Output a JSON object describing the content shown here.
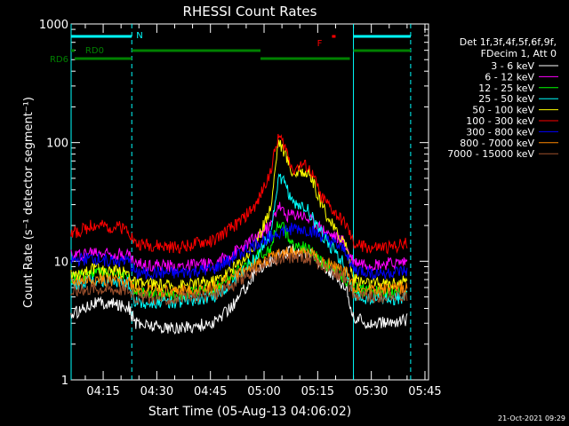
{
  "chart_data": {
    "type": "line",
    "title": "RHESSI Count Rates",
    "xlabel": "Start Time (05-Aug-13 04:06:02)",
    "ylabel": "Count Rate (s⁻¹ detector segment⁻¹)",
    "y_scale": "log",
    "ylim": [
      1,
      1000
    ],
    "xlim": [
      "04:06:02",
      "05:46"
    ],
    "x_ticks": [
      "04:15",
      "04:30",
      "04:45",
      "05:00",
      "05:15",
      "05:30",
      "05:45"
    ],
    "y_ticks": [
      "1",
      "10",
      "100",
      "1000"
    ],
    "header": [
      "Det 1f,3f,4f,5f,6f,9f,",
      "FDecim 1, Att 0"
    ],
    "series": [
      {
        "name": "3 - 6 keV",
        "color": "#ffffff",
        "points": [
          [
            "04:06",
            3.5
          ],
          [
            "04:12",
            4.5
          ],
          [
            "04:22",
            4.2
          ],
          [
            "04:24",
            3.0
          ],
          [
            "04:35",
            2.7
          ],
          [
            "04:46",
            3.0
          ],
          [
            "04:52",
            4.5
          ],
          [
            "04:58",
            8.5
          ],
          [
            "05:03",
            10.5
          ],
          [
            "05:08",
            12.5
          ],
          [
            "05:13",
            11.5
          ],
          [
            "05:18",
            8.5
          ],
          [
            "05:23",
            6.0
          ],
          [
            "05:25",
            3.3
          ],
          [
            "05:30",
            3.0
          ],
          [
            "05:35",
            3.0
          ],
          [
            "05:40",
            3.2
          ]
        ]
      },
      {
        "name": "6 - 12 keV",
        "color": "#ff00ff",
        "points": [
          [
            "04:06",
            11
          ],
          [
            "04:12",
            12
          ],
          [
            "04:22",
            11.5
          ],
          [
            "04:24",
            9.5
          ],
          [
            "04:35",
            9.0
          ],
          [
            "04:46",
            9.5
          ],
          [
            "04:52",
            12
          ],
          [
            "04:58",
            16
          ],
          [
            "05:02",
            20
          ],
          [
            "05:04",
            30
          ],
          [
            "05:06",
            24
          ],
          [
            "05:10",
            25
          ],
          [
            "05:14",
            21
          ],
          [
            "05:18",
            17
          ],
          [
            "05:22",
            15
          ],
          [
            "05:25",
            10
          ],
          [
            "05:30",
            9.5
          ],
          [
            "05:35",
            9.5
          ],
          [
            "05:40",
            10
          ]
        ]
      },
      {
        "name": "12 - 25 keV",
        "color": "#00ff00",
        "points": [
          [
            "04:06",
            7
          ],
          [
            "04:12",
            8
          ],
          [
            "04:22",
            7.5
          ],
          [
            "04:24",
            5.5
          ],
          [
            "04:35",
            5.2
          ],
          [
            "04:46",
            5.8
          ],
          [
            "04:52",
            8
          ],
          [
            "04:58",
            11
          ],
          [
            "05:02",
            13
          ],
          [
            "05:04",
            22
          ],
          [
            "05:06",
            18
          ],
          [
            "05:08",
            14
          ],
          [
            "05:12",
            13
          ],
          [
            "05:16",
            10
          ],
          [
            "05:20",
            8.5
          ],
          [
            "05:25",
            6
          ],
          [
            "05:30",
            5.5
          ],
          [
            "05:35",
            5.5
          ],
          [
            "05:40",
            5.8
          ]
        ]
      },
      {
        "name": "25 - 50 keV",
        "color": "#00ffff",
        "points": [
          [
            "04:06",
            6
          ],
          [
            "04:12",
            7
          ],
          [
            "04:22",
            6.5
          ],
          [
            "04:24",
            4.5
          ],
          [
            "04:35",
            4.5
          ],
          [
            "04:46",
            5
          ],
          [
            "04:52",
            7
          ],
          [
            "04:58",
            11
          ],
          [
            "05:02",
            18
          ],
          [
            "05:04",
            50
          ],
          [
            "05:06",
            45
          ],
          [
            "05:08",
            30
          ],
          [
            "05:12",
            28
          ],
          [
            "05:14",
            22
          ],
          [
            "05:18",
            14
          ],
          [
            "05:22",
            10
          ],
          [
            "05:25",
            5
          ],
          [
            "05:30",
            4.8
          ],
          [
            "05:35",
            4.8
          ],
          [
            "05:40",
            5
          ]
        ]
      },
      {
        "name": "50 - 100 keV",
        "color": "#ffff00",
        "points": [
          [
            "04:06",
            7.5
          ],
          [
            "04:12",
            8.5
          ],
          [
            "04:22",
            8
          ],
          [
            "04:24",
            6.5
          ],
          [
            "04:35",
            6.2
          ],
          [
            "04:46",
            6.8
          ],
          [
            "04:52",
            9
          ],
          [
            "04:58",
            14
          ],
          [
            "05:02",
            30
          ],
          [
            "05:04",
            105
          ],
          [
            "05:06",
            80
          ],
          [
            "05:08",
            55
          ],
          [
            "05:11",
            58
          ],
          [
            "05:13",
            52
          ],
          [
            "05:16",
            30
          ],
          [
            "05:20",
            18
          ],
          [
            "05:23",
            14
          ],
          [
            "05:25",
            7
          ],
          [
            "05:30",
            6.5
          ],
          [
            "05:35",
            6.5
          ],
          [
            "05:40",
            6.8
          ]
        ]
      },
      {
        "name": "100 - 300 keV",
        "color": "#ff0000",
        "points": [
          [
            "04:06",
            17
          ],
          [
            "04:12",
            20
          ],
          [
            "04:22",
            19
          ],
          [
            "04:24",
            14
          ],
          [
            "04:35",
            13
          ],
          [
            "04:46",
            15
          ],
          [
            "04:52",
            20
          ],
          [
            "04:58",
            30
          ],
          [
            "05:02",
            60
          ],
          [
            "05:04",
            115
          ],
          [
            "05:06",
            90
          ],
          [
            "05:08",
            60
          ],
          [
            "05:11",
            65
          ],
          [
            "05:13",
            58
          ],
          [
            "05:16",
            35
          ],
          [
            "05:20",
            25
          ],
          [
            "05:23",
            20
          ],
          [
            "05:25",
            14
          ],
          [
            "05:30",
            13
          ],
          [
            "05:35",
            13
          ],
          [
            "05:40",
            14
          ]
        ]
      },
      {
        "name": "300 - 800 keV",
        "color": "#0000ff",
        "points": [
          [
            "04:06",
            10
          ],
          [
            "04:12",
            10.5
          ],
          [
            "04:22",
            10
          ],
          [
            "04:24",
            8
          ],
          [
            "04:35",
            7.8
          ],
          [
            "04:46",
            8.5
          ],
          [
            "04:52",
            11
          ],
          [
            "04:58",
            14
          ],
          [
            "05:03",
            17
          ],
          [
            "05:08",
            19
          ],
          [
            "05:13",
            18
          ],
          [
            "05:18",
            15
          ],
          [
            "05:23",
            12
          ],
          [
            "05:25",
            8.5
          ],
          [
            "05:30",
            8
          ],
          [
            "05:35",
            8
          ],
          [
            "05:40",
            8.2
          ]
        ]
      },
      {
        "name": "800 - 7000 keV",
        "color": "#ff8800",
        "points": [
          [
            "04:06",
            6.5
          ],
          [
            "04:12",
            7
          ],
          [
            "04:22",
            6.8
          ],
          [
            "04:24",
            5.8
          ],
          [
            "04:35",
            5.5
          ],
          [
            "04:46",
            6
          ],
          [
            "04:52",
            7.5
          ],
          [
            "04:58",
            9.5
          ],
          [
            "05:03",
            11
          ],
          [
            "05:08",
            12
          ],
          [
            "05:13",
            11.5
          ],
          [
            "05:18",
            9.5
          ],
          [
            "05:23",
            8
          ],
          [
            "05:25",
            6
          ],
          [
            "05:30",
            5.8
          ],
          [
            "05:35",
            5.8
          ],
          [
            "05:40",
            6
          ]
        ]
      },
      {
        "name": "7000 - 15000 keV",
        "color": "#a0522d",
        "points": [
          [
            "04:06",
            5.5
          ],
          [
            "04:12",
            6
          ],
          [
            "04:22",
            5.8
          ],
          [
            "04:24",
            5
          ],
          [
            "04:35",
            4.8
          ],
          [
            "04:46",
            5.2
          ],
          [
            "04:52",
            6.5
          ],
          [
            "04:58",
            8.5
          ],
          [
            "05:03",
            10
          ],
          [
            "05:08",
            11
          ],
          [
            "05:13",
            10.5
          ],
          [
            "05:18",
            8.5
          ],
          [
            "05:23",
            7
          ],
          [
            "05:25",
            5.2
          ],
          [
            "05:30",
            5
          ],
          [
            "05:35",
            5
          ],
          [
            "05:40",
            5.2
          ]
        ]
      }
    ],
    "vlines": [
      {
        "t": "04:06:02",
        "style": "solid",
        "color": "#00ffff"
      },
      {
        "t": "04:23",
        "style": "dashed",
        "color": "#00ffff"
      },
      {
        "t": "05:25",
        "style": "solid",
        "color": "#00ffff"
      },
      {
        "t": "05:41",
        "style": "dashed",
        "color": "#00ffff"
      }
    ],
    "flags": [
      {
        "label": "N",
        "color": "#00ffff",
        "row": "top",
        "label_time": "04:23",
        "segments": [
          [
            "04:06:02",
            "04:23"
          ],
          [
            "05:25",
            "05:41"
          ]
        ]
      },
      {
        "label": "F",
        "color": "#ff0000",
        "row": "top",
        "label_time": "05:18",
        "segments": [
          [
            "05:19",
            "05:20"
          ]
        ]
      },
      {
        "label": "RD0",
        "color": "#008000",
        "row": "mid",
        "label_time": "04:09",
        "segments": [
          [
            "04:06:02",
            "04:07"
          ],
          [
            "04:23",
            "04:59"
          ],
          [
            "05:25",
            "05:41"
          ]
        ]
      },
      {
        "label": "RD6",
        "color": "#008000",
        "row": "low",
        "label_time": "04:06:02",
        "segments": [
          [
            "04:07",
            "04:23"
          ],
          [
            "04:59",
            "05:24"
          ]
        ]
      }
    ],
    "timestamp": "21-Oct-2021 09:29"
  }
}
